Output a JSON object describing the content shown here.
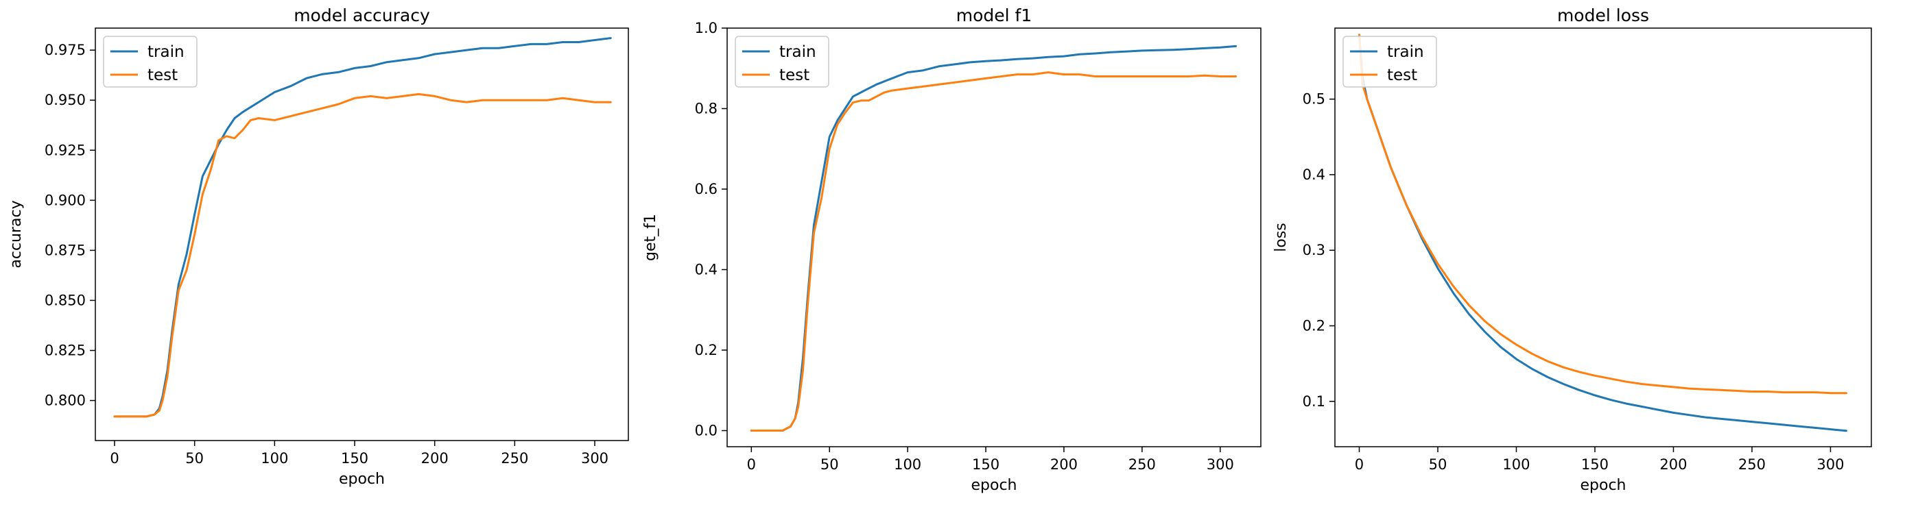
{
  "charts": [
    {
      "type": "line",
      "title": "model accuracy",
      "xlabel": "epoch",
      "ylabel": "accuracy",
      "xlim": [
        -12,
        321
      ],
      "ylim": [
        0.78,
        0.986
      ],
      "xticks": [
        0,
        50,
        100,
        150,
        200,
        250,
        300
      ],
      "yticks": [
        0.8,
        0.825,
        0.85,
        0.875,
        0.9,
        0.925,
        0.95,
        0.975
      ],
      "ytick_labels": [
        "0.800",
        "0.825",
        "0.850",
        "0.875",
        "0.900",
        "0.925",
        "0.950",
        "0.975"
      ],
      "legend": "upper-left",
      "series": [
        {
          "name": "train",
          "color": "#1f77b4",
          "x": [
            0,
            10,
            20,
            25,
            28,
            30,
            33,
            36,
            40,
            45,
            50,
            55,
            60,
            65,
            70,
            75,
            80,
            90,
            100,
            110,
            120,
            130,
            140,
            150,
            160,
            170,
            180,
            190,
            200,
            210,
            220,
            230,
            240,
            250,
            260,
            270,
            280,
            290,
            300,
            310
          ],
          "y": [
            0.792,
            0.792,
            0.792,
            0.793,
            0.796,
            0.802,
            0.815,
            0.835,
            0.858,
            0.873,
            0.893,
            0.912,
            0.92,
            0.928,
            0.935,
            0.941,
            0.944,
            0.949,
            0.954,
            0.957,
            0.961,
            0.963,
            0.964,
            0.966,
            0.967,
            0.969,
            0.97,
            0.971,
            0.973,
            0.974,
            0.975,
            0.976,
            0.976,
            0.977,
            0.978,
            0.978,
            0.979,
            0.979,
            0.98,
            0.981
          ]
        },
        {
          "name": "test",
          "color": "#ff7f0e",
          "x": [
            0,
            10,
            20,
            25,
            28,
            30,
            33,
            36,
            40,
            45,
            50,
            55,
            60,
            65,
            70,
            75,
            80,
            85,
            90,
            100,
            110,
            120,
            130,
            140,
            150,
            160,
            170,
            180,
            190,
            200,
            210,
            220,
            230,
            240,
            250,
            260,
            270,
            280,
            290,
            300,
            310
          ],
          "y": [
            0.792,
            0.792,
            0.792,
            0.793,
            0.795,
            0.8,
            0.812,
            0.832,
            0.855,
            0.865,
            0.883,
            0.903,
            0.915,
            0.93,
            0.932,
            0.931,
            0.935,
            0.94,
            0.941,
            0.94,
            0.942,
            0.944,
            0.946,
            0.948,
            0.951,
            0.952,
            0.951,
            0.952,
            0.953,
            0.952,
            0.95,
            0.949,
            0.95,
            0.95,
            0.95,
            0.95,
            0.95,
            0.951,
            0.95,
            0.949,
            0.949
          ]
        }
      ]
    },
    {
      "type": "line",
      "title": "model f1",
      "xlabel": "epoch",
      "ylabel": "get_f1",
      "xlim": [
        -15.5,
        326
      ],
      "ylim": [
        -0.04,
        1.0
      ],
      "xticks": [
        0,
        50,
        100,
        150,
        200,
        250,
        300
      ],
      "yticks": [
        0.0,
        0.2,
        0.4,
        0.6,
        0.8,
        1.0
      ],
      "ytick_labels": [
        "0.0",
        "0.2",
        "0.4",
        "0.6",
        "0.8",
        "1.0"
      ],
      "legend": "upper-left",
      "series": [
        {
          "name": "train",
          "color": "#1f77b4",
          "x": [
            0,
            10,
            20,
            25,
            28,
            30,
            33,
            36,
            40,
            45,
            50,
            55,
            60,
            65,
            70,
            75,
            80,
            90,
            100,
            110,
            120,
            130,
            140,
            150,
            160,
            170,
            180,
            190,
            200,
            210,
            220,
            230,
            240,
            250,
            260,
            270,
            280,
            290,
            300,
            310
          ],
          "y": [
            0.0,
            0.0,
            0.0,
            0.01,
            0.03,
            0.07,
            0.18,
            0.33,
            0.51,
            0.62,
            0.73,
            0.77,
            0.8,
            0.83,
            0.84,
            0.85,
            0.86,
            0.875,
            0.89,
            0.895,
            0.905,
            0.91,
            0.915,
            0.918,
            0.92,
            0.923,
            0.925,
            0.928,
            0.93,
            0.935,
            0.937,
            0.94,
            0.942,
            0.944,
            0.945,
            0.946,
            0.948,
            0.95,
            0.952,
            0.955
          ]
        },
        {
          "name": "test",
          "color": "#ff7f0e",
          "x": [
            0,
            10,
            20,
            25,
            28,
            30,
            33,
            36,
            40,
            45,
            50,
            55,
            60,
            65,
            70,
            75,
            80,
            85,
            90,
            100,
            110,
            120,
            130,
            140,
            150,
            160,
            170,
            180,
            190,
            200,
            210,
            220,
            230,
            240,
            250,
            260,
            270,
            280,
            290,
            300,
            310
          ],
          "y": [
            0.0,
            0.0,
            0.0,
            0.01,
            0.03,
            0.06,
            0.15,
            0.31,
            0.49,
            0.58,
            0.7,
            0.76,
            0.79,
            0.815,
            0.82,
            0.82,
            0.83,
            0.84,
            0.845,
            0.85,
            0.855,
            0.86,
            0.865,
            0.87,
            0.875,
            0.88,
            0.885,
            0.885,
            0.89,
            0.885,
            0.885,
            0.88,
            0.88,
            0.88,
            0.88,
            0.88,
            0.88,
            0.88,
            0.882,
            0.88,
            0.88
          ]
        }
      ]
    },
    {
      "type": "line",
      "title": "model loss",
      "xlabel": "epoch",
      "ylabel": "loss",
      "xlim": [
        -15.5,
        326
      ],
      "ylim": [
        0.04,
        0.594
      ],
      "xticks": [
        0,
        50,
        100,
        150,
        200,
        250,
        300
      ],
      "yticks": [
        0.1,
        0.2,
        0.3,
        0.4,
        0.5
      ],
      "ytick_labels": [
        "0.1",
        "0.2",
        "0.3",
        "0.4",
        "0.5"
      ],
      "legend": "upper-left",
      "series": [
        {
          "name": "train",
          "color": "#1f77b4",
          "x": [
            0,
            2,
            5,
            10,
            15,
            20,
            25,
            30,
            40,
            50,
            60,
            70,
            80,
            90,
            100,
            110,
            120,
            130,
            140,
            150,
            160,
            170,
            180,
            190,
            200,
            210,
            220,
            230,
            240,
            250,
            260,
            270,
            280,
            290,
            300,
            310
          ],
          "y": [
            0.585,
            0.53,
            0.5,
            0.47,
            0.44,
            0.41,
            0.385,
            0.36,
            0.315,
            0.276,
            0.243,
            0.215,
            0.192,
            0.172,
            0.156,
            0.143,
            0.132,
            0.123,
            0.115,
            0.108,
            0.102,
            0.097,
            0.093,
            0.089,
            0.085,
            0.082,
            0.079,
            0.077,
            0.075,
            0.073,
            0.071,
            0.069,
            0.067,
            0.065,
            0.063,
            0.061
          ]
        },
        {
          "name": "test",
          "color": "#ff7f0e",
          "x": [
            0,
            2,
            5,
            10,
            15,
            20,
            25,
            30,
            40,
            50,
            60,
            70,
            80,
            90,
            100,
            110,
            120,
            130,
            140,
            150,
            160,
            170,
            180,
            190,
            200,
            210,
            220,
            230,
            240,
            250,
            260,
            270,
            280,
            290,
            300,
            310
          ],
          "y": [
            0.585,
            0.52,
            0.5,
            0.47,
            0.44,
            0.41,
            0.385,
            0.36,
            0.318,
            0.282,
            0.252,
            0.227,
            0.206,
            0.189,
            0.175,
            0.163,
            0.153,
            0.145,
            0.139,
            0.134,
            0.13,
            0.126,
            0.123,
            0.121,
            0.119,
            0.117,
            0.116,
            0.115,
            0.114,
            0.113,
            0.113,
            0.112,
            0.112,
            0.112,
            0.111,
            0.111
          ]
        }
      ]
    }
  ]
}
